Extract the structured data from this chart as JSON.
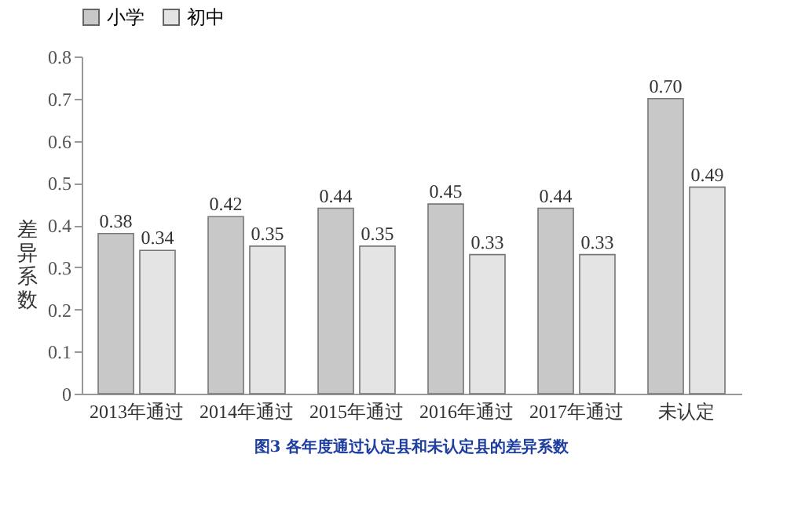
{
  "chart_data": {
    "type": "bar",
    "ylabel": "差异系数",
    "categories": [
      "2013年通过",
      "2014年通过",
      "2015年通过",
      "2016年通过",
      "2017年通过",
      "未认定"
    ],
    "series": [
      {
        "name": "小学",
        "color": "#c8c8c8",
        "values": [
          0.38,
          0.42,
          0.44,
          0.45,
          0.44,
          0.7
        ],
        "value_labels": [
          "0.38",
          "0.42",
          "0.44",
          "0.45",
          "0.44",
          "0.70"
        ]
      },
      {
        "name": "初中",
        "color": "#e4e4e4",
        "values": [
          0.34,
          0.35,
          0.35,
          0.33,
          0.33,
          0.49
        ],
        "value_labels": [
          "0.34",
          "0.35",
          "0.35",
          "0.33",
          "0.33",
          "0.49"
        ]
      }
    ],
    "ylim": [
      0,
      0.8
    ],
    "yticks": [
      0,
      0.1,
      0.2,
      0.3,
      0.4,
      0.5,
      0.6,
      0.7,
      0.8
    ],
    "legend": "top",
    "grid": false,
    "annotations": [
      "图3 各年度通过认定县和未认定县的差异系数"
    ]
  }
}
